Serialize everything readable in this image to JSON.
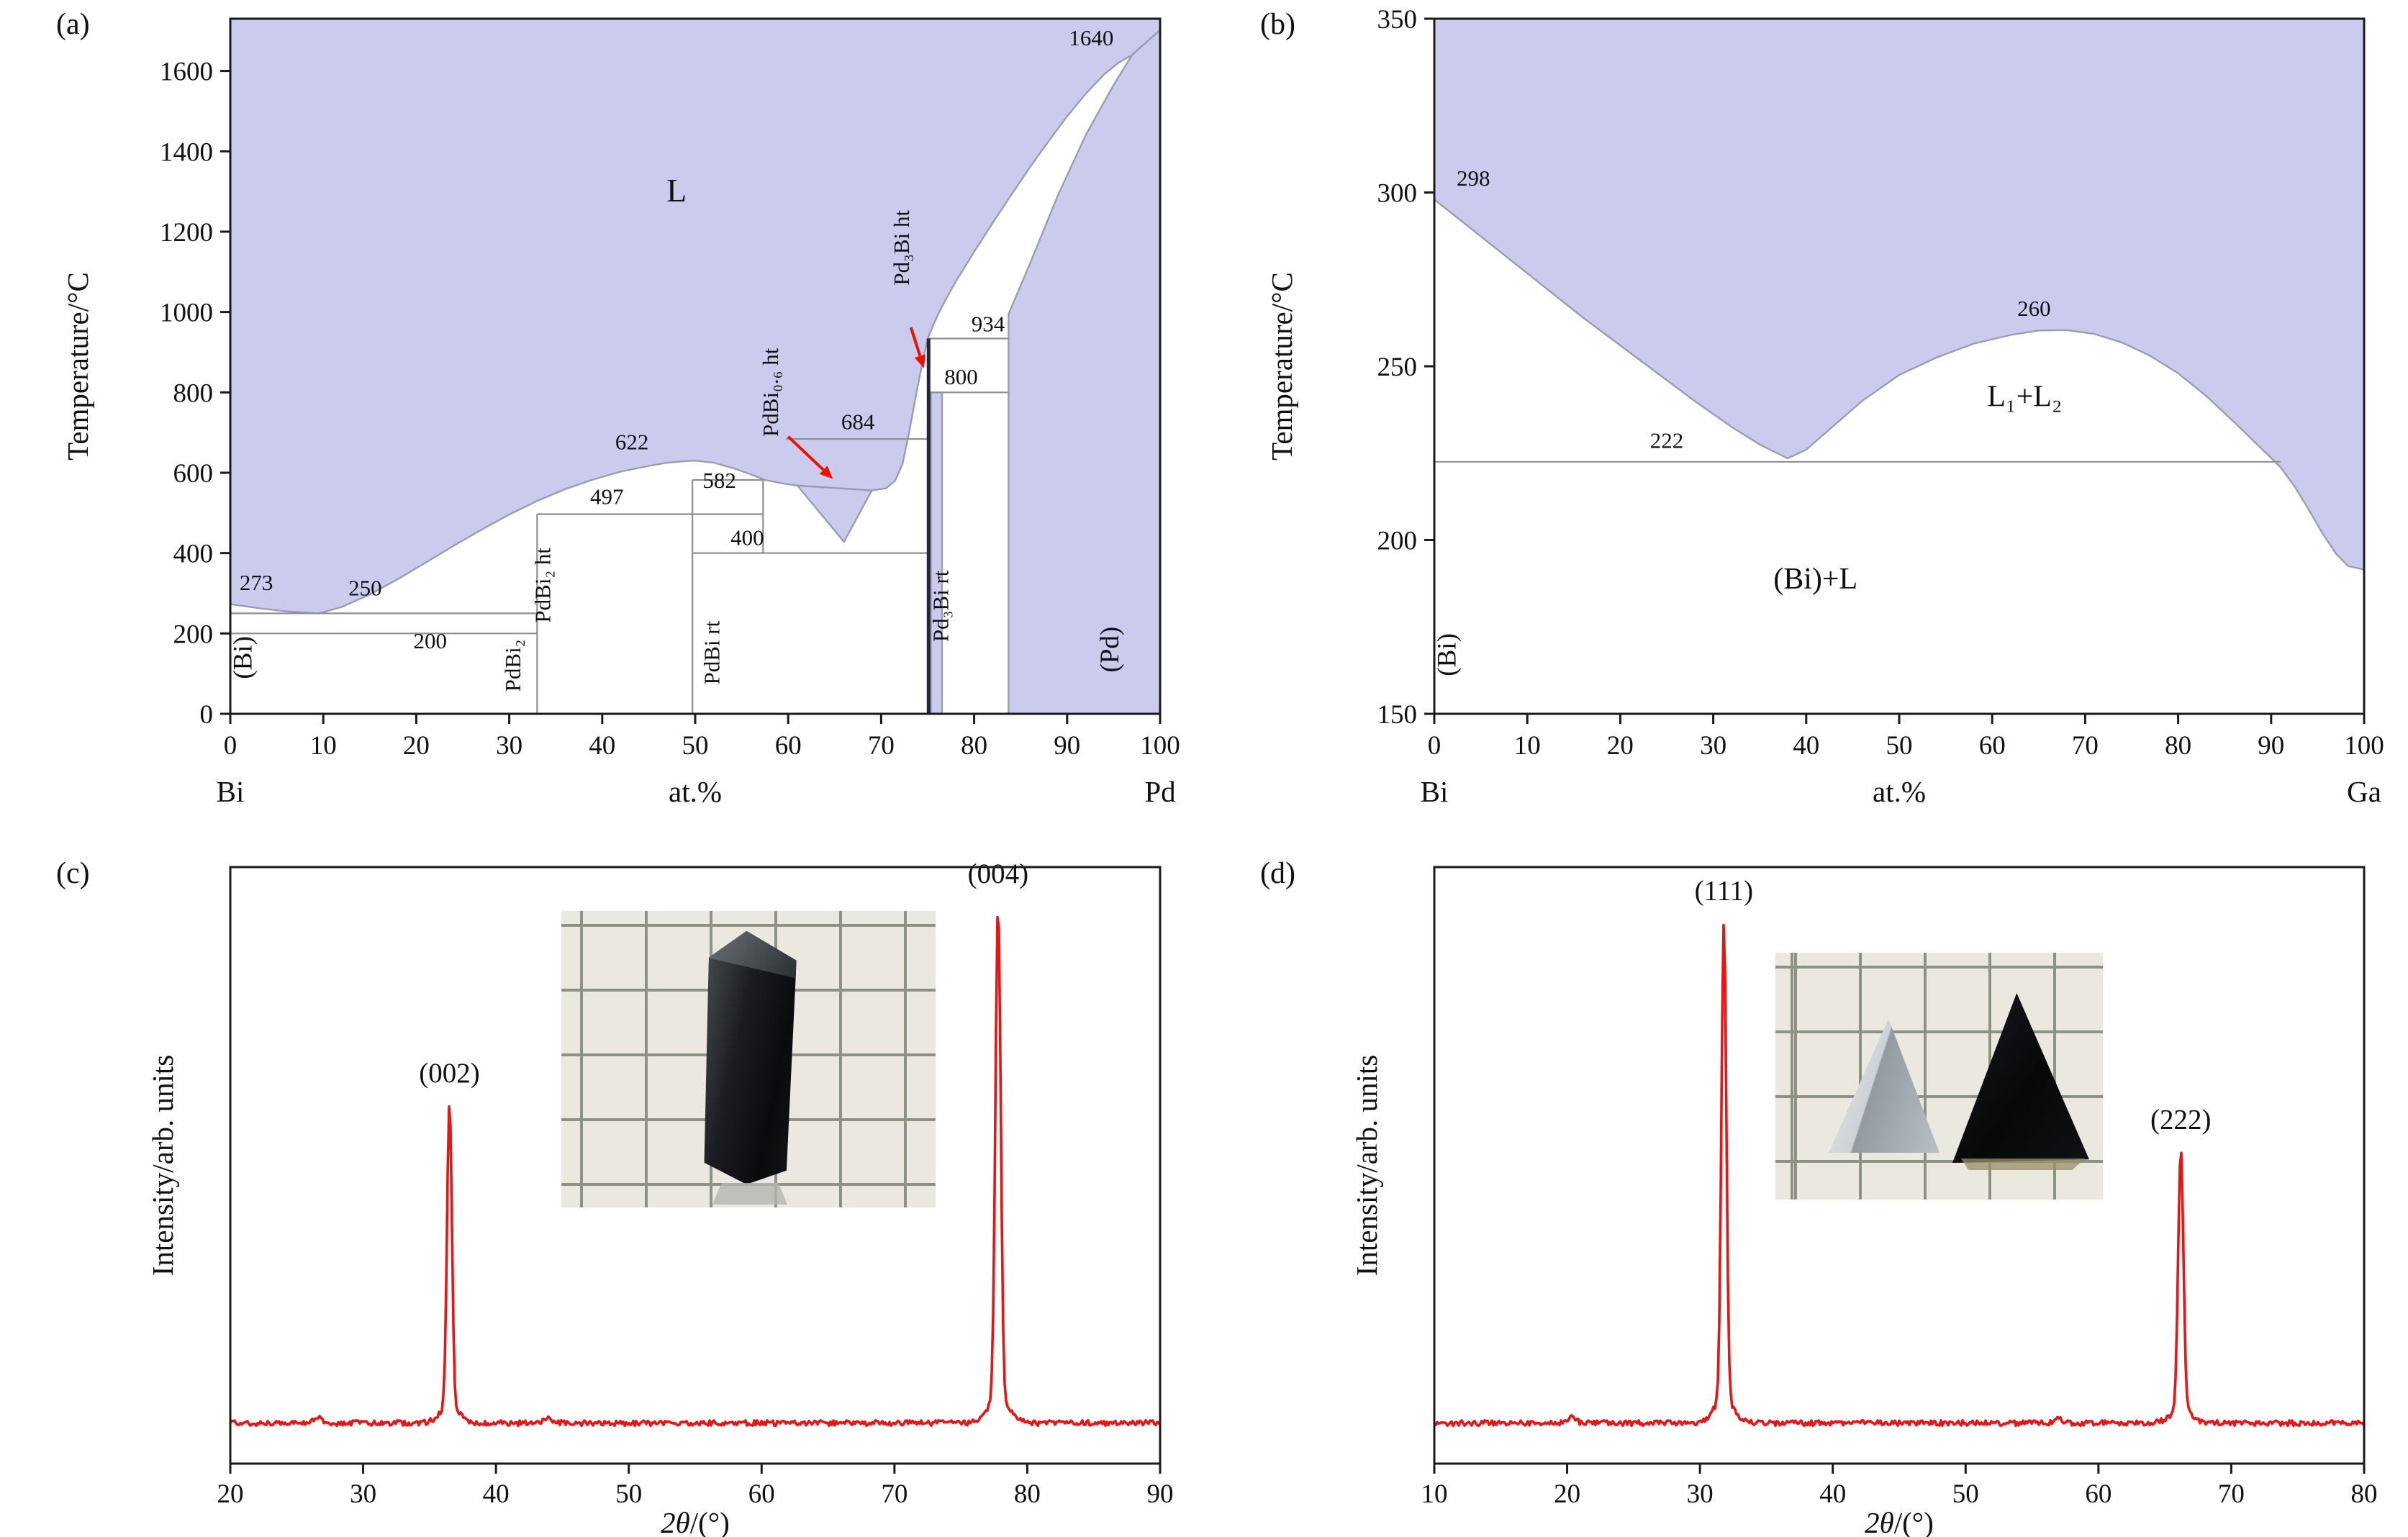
{
  "colors": {
    "liquid": "#cbcbed",
    "boundary": "#9b9bb4",
    "line": "#8f8f8f",
    "axis": "#1a1a1a",
    "xrd": "#ee1312",
    "arrow": "#f01000",
    "dark_line": "#24243a"
  },
  "chart_data": [
    {
      "id": "a",
      "letter": "(a)",
      "type": "phase-diagram",
      "system": "Bi-Pd",
      "ylabel": "Temperature/°C",
      "xlabel": "at.%",
      "xlabel_left": "Bi",
      "xlabel_right": "Pd",
      "xlim": [
        0,
        100
      ],
      "ylim": [
        0,
        1730
      ],
      "xticks": [
        0,
        10,
        20,
        30,
        40,
        50,
        60,
        70,
        80,
        90,
        100
      ],
      "yticks": [
        0,
        200,
        400,
        600,
        800,
        1000,
        1200,
        1400,
        1600
      ],
      "liquidus": [
        [
          0,
          273
        ],
        [
          3,
          263
        ],
        [
          6,
          255
        ],
        [
          9.5,
          250
        ],
        [
          12,
          266
        ],
        [
          15,
          297
        ],
        [
          18,
          335
        ],
        [
          21,
          376
        ],
        [
          24,
          418
        ],
        [
          27,
          458
        ],
        [
          30,
          496
        ],
        [
          33,
          530
        ],
        [
          36,
          559
        ],
        [
          39,
          583
        ],
        [
          42,
          603
        ],
        [
          45,
          617
        ],
        [
          47,
          625
        ],
        [
          49,
          629
        ],
        [
          50,
          630
        ],
        [
          52,
          625
        ],
        [
          54,
          612
        ],
        [
          56,
          596
        ],
        [
          57.5,
          582
        ],
        [
          59.5,
          573
        ],
        [
          61,
          568
        ],
        [
          63,
          562
        ],
        [
          66,
          557
        ],
        [
          69,
          556
        ],
        [
          70.5,
          561
        ],
        [
          71.5,
          580
        ],
        [
          72.3,
          622
        ],
        [
          73,
          700
        ],
        [
          73.8,
          800
        ],
        [
          74.5,
          880
        ],
        [
          75,
          934
        ],
        [
          75.6,
          968
        ],
        [
          76.5,
          1012
        ],
        [
          78,
          1075
        ],
        [
          80,
          1150
        ],
        [
          82,
          1222
        ],
        [
          84,
          1292
        ],
        [
          86,
          1360
        ],
        [
          88,
          1425
        ],
        [
          90,
          1487
        ],
        [
          92,
          1543
        ],
        [
          94,
          1592
        ],
        [
          95.5,
          1620
        ],
        [
          97,
          1640
        ]
      ],
      "regions": [
        {
          "name": "liquid-region",
          "use_liquidus": true,
          "prefix": [
            [
              0,
              1730
            ]
          ],
          "suffix": [
            [
              100,
              1702
            ],
            [
              100,
              1730
            ]
          ]
        },
        {
          "name": "pd-solid-solution-region",
          "points": [
            [
              83.7,
              0
            ],
            [
              83.7,
              995
            ],
            [
              86,
              1120
            ],
            [
              89,
              1290
            ],
            [
              92,
              1440
            ],
            [
              95,
              1565
            ],
            [
              97,
              1640
            ],
            [
              100,
              1702
            ],
            [
              100,
              0
            ]
          ]
        },
        {
          "name": "pd3bi-rt-band",
          "points": [
            [
              75.35,
              0
            ],
            [
              75.35,
              800
            ],
            [
              76.55,
              800
            ],
            [
              76.55,
              0
            ]
          ]
        },
        {
          "name": "pdbi06-ht-region",
          "points": [
            [
              61,
              568
            ],
            [
              69,
              556
            ],
            [
              66,
              428
            ]
          ]
        }
      ],
      "isotherms": [
        {
          "t": 250,
          "x1": 0,
          "x2": 33
        },
        {
          "t": 200,
          "x1": 0,
          "x2": 33
        },
        {
          "t": 497,
          "x1": 33,
          "x2": 57.3
        },
        {
          "t": 582,
          "x1": 49.7,
          "x2": 57.3
        },
        {
          "t": 400,
          "x1": 49.7,
          "x2": 75.1
        },
        {
          "t": 684,
          "x1": 59.8,
          "x2": 75.1
        },
        {
          "t": 800,
          "x1": 75.1,
          "x2": 83.7
        },
        {
          "t": 934,
          "x1": 75.1,
          "x2": 83.7
        }
      ],
      "verticals": [
        {
          "x": 33,
          "y1": 0,
          "y2": 497
        },
        {
          "x": 49.7,
          "y1": 0,
          "y2": 582
        },
        {
          "x": 57.3,
          "y1": 400,
          "y2": 582
        },
        {
          "x": 75.1,
          "y1": 0,
          "y2": 934,
          "dark": true
        }
      ],
      "labels": [
        {
          "text": "L",
          "x": 48,
          "y": 1275,
          "size": 46
        },
        {
          "text": "(Bi)",
          "x": 2.3,
          "y": 140,
          "rot": -90,
          "size": 37
        },
        {
          "text": "(Pd)",
          "x": 95.5,
          "y": 160,
          "rot": -90,
          "size": 37
        },
        {
          "text": "273",
          "x": 2.8,
          "y": 308,
          "size": 31
        },
        {
          "text": "250",
          "x": 14.5,
          "y": 295,
          "size": 31
        },
        {
          "text": "200",
          "x": 21.5,
          "y": 163,
          "size": 31
        },
        {
          "text": "497",
          "x": 40.5,
          "y": 522,
          "size": 31
        },
        {
          "text": "622",
          "x": 43.2,
          "y": 658,
          "size": 31
        },
        {
          "text": "582",
          "x": 52.6,
          "y": 562,
          "size": 31
        },
        {
          "text": "400",
          "x": 55.6,
          "y": 420,
          "size": 31
        },
        {
          "text": "684",
          "x": 67.5,
          "y": 708,
          "size": 31
        },
        {
          "text": "800",
          "x": 78.6,
          "y": 820,
          "size": 31
        },
        {
          "text": "934",
          "x": 81.5,
          "y": 952,
          "size": 31
        },
        {
          "text": "1640",
          "x": 92.6,
          "y": 1664,
          "size": 31
        },
        {
          "text": "PdBi₂ ht",
          "x": 34.4,
          "y": 320,
          "rot": -90,
          "size": 31
        },
        {
          "text": "PdBi₂",
          "x": 31.2,
          "y": 120,
          "rot": -90,
          "size": 31
        },
        {
          "text": "PdBi rt",
          "x": 52.6,
          "y": 152,
          "rot": -90,
          "size": 31
        },
        {
          "text": "Pd₃Bi rt",
          "x": 77.2,
          "y": 268,
          "rot": -90,
          "size": 31
        },
        {
          "text": "PdBi₀.₆ ht",
          "x": 58.9,
          "y": 800,
          "rot": -90,
          "size": 31
        },
        {
          "text": "Pd₃Bi ht",
          "x": 73.0,
          "y": 1160,
          "rot": -90,
          "size": 31
        }
      ],
      "arrows": [
        {
          "x1": 60,
          "y1": 690,
          "x2": 64.8,
          "y2": 585
        },
        {
          "x1": 73.2,
          "y1": 962,
          "x2": 74.6,
          "y2": 860
        }
      ]
    },
    {
      "id": "b",
      "letter": "(b)",
      "type": "phase-diagram",
      "system": "Bi-Ga",
      "ylabel": "Temperature/°C",
      "xlabel": "at.%",
      "xlabel_left": "Bi",
      "xlabel_right": "Ga",
      "xlim": [
        0,
        100
      ],
      "ylim": [
        150,
        350
      ],
      "xticks": [
        0,
        10,
        20,
        30,
        40,
        50,
        60,
        70,
        80,
        90,
        100
      ],
      "yticks": [
        150,
        200,
        250,
        300,
        350
      ],
      "liquidus": [
        [
          0,
          298
        ],
        [
          4,
          289.5
        ],
        [
          8,
          281
        ],
        [
          12,
          272.5
        ],
        [
          16,
          264
        ],
        [
          20,
          256
        ],
        [
          24,
          248
        ],
        [
          28,
          240
        ],
        [
          32,
          232.5
        ],
        [
          35,
          227.5
        ],
        [
          38,
          223.5
        ],
        [
          40,
          226
        ],
        [
          43,
          233
        ],
        [
          46,
          240
        ],
        [
          50,
          247.5
        ],
        [
          54,
          252.5
        ],
        [
          58,
          256.5
        ],
        [
          62,
          259
        ],
        [
          65,
          260.3
        ],
        [
          68,
          260.4
        ],
        [
          71,
          259.3
        ],
        [
          74,
          256.8
        ],
        [
          77,
          253
        ],
        [
          80,
          248
        ],
        [
          83,
          241.5
        ],
        [
          86,
          234
        ],
        [
          88.5,
          227.5
        ],
        [
          91,
          221
        ],
        [
          92.5,
          215.5
        ],
        [
          94,
          209
        ],
        [
          95.5,
          202
        ],
        [
          97,
          196
        ],
        [
          98.3,
          192.5
        ],
        [
          100,
          191.5
        ]
      ],
      "regions": [
        {
          "name": "liquid-region",
          "use_liquidus": true,
          "prefix": [
            [
              0,
              350
            ]
          ],
          "suffix": [
            [
              100,
              350
            ]
          ]
        }
      ],
      "isotherms": [
        {
          "t": 222.5,
          "x1": 0,
          "x2": 91
        }
      ],
      "verticals": [],
      "labels": [
        {
          "text": "298",
          "x": 4.2,
          "y": 302,
          "size": 31
        },
        {
          "text": "260",
          "x": 64.5,
          "y": 264.5,
          "size": 31
        },
        {
          "text": "222",
          "x": 25,
          "y": 226.5,
          "size": 31
        },
        {
          "text": "L₁+L₂",
          "x": 63.5,
          "y": 238.5,
          "size": 42
        },
        {
          "text": "(Bi)+L",
          "x": 41,
          "y": 186,
          "size": 42
        },
        {
          "text": "(Bi)",
          "x": 2.3,
          "y": 167,
          "rot": -90,
          "size": 37
        }
      ],
      "arrows": []
    },
    {
      "id": "c",
      "letter": "(c)",
      "type": "xrd",
      "ylabel": "Intensity/arb. units",
      "xlabel_parts": [
        [
          "2θ",
          true
        ],
        [
          "/(°)",
          false
        ]
      ],
      "xlim": [
        20,
        90
      ],
      "xticks": [
        20,
        30,
        40,
        50,
        60,
        70,
        80,
        90
      ],
      "baseline": 0.068,
      "peaks": [
        {
          "center": 36.5,
          "height": 0.512,
          "sigma": 0.26,
          "label": "(002)"
        },
        {
          "center": 77.8,
          "height": 0.83,
          "sigma": 0.28,
          "label": "(004)"
        }
      ],
      "minor_peaks": [
        {
          "center": 26.6,
          "height": 0.012,
          "sigma": 0.45
        },
        {
          "center": 44.0,
          "height": 0.007,
          "sigma": 0.5
        }
      ]
    },
    {
      "id": "d",
      "letter": "(d)",
      "type": "xrd",
      "ylabel": "Intensity/arb. units",
      "xlabel_parts": [
        [
          "2θ",
          true
        ],
        [
          "/(°)",
          false
        ]
      ],
      "xlim": [
        10,
        80
      ],
      "xticks": [
        10,
        20,
        30,
        40,
        50,
        60,
        70,
        80
      ],
      "baseline": 0.068,
      "peaks": [
        {
          "center": 31.8,
          "height": 0.803,
          "sigma": 0.26,
          "label": "(111)"
        },
        {
          "center": 66.2,
          "height": 0.438,
          "sigma": 0.28,
          "label": "(222)"
        }
      ],
      "minor_peaks": [
        {
          "center": 20.3,
          "height": 0.011,
          "sigma": 0.45
        },
        {
          "center": 57.0,
          "height": 0.006,
          "sigma": 0.5
        }
      ]
    }
  ]
}
